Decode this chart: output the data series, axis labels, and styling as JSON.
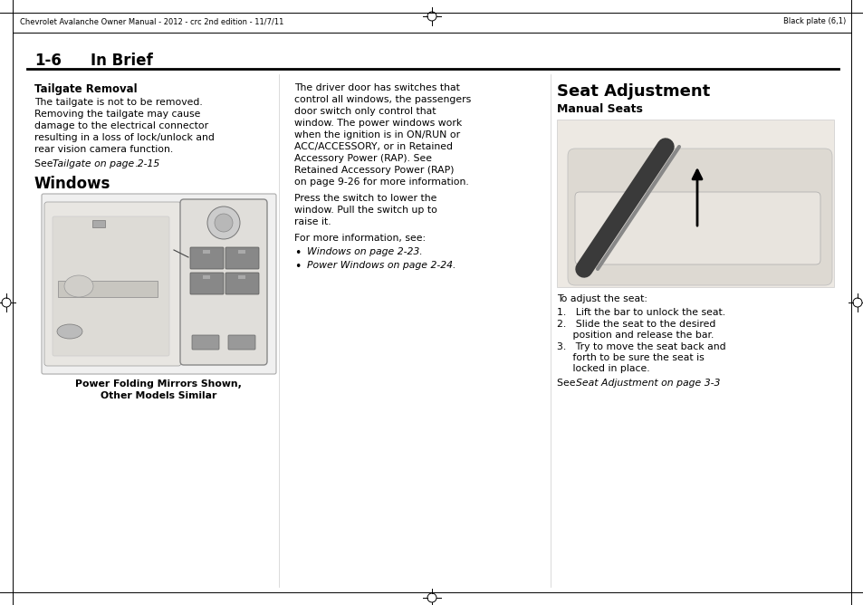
{
  "page_bg": "#ffffff",
  "header_text": "Chevrolet Avalanche Owner Manual - 2012 - crc 2nd edition - 11/7/11",
  "header_right": "Black plate (6,1)",
  "section_title_num": "1-6",
  "section_title_text": "In Brief",
  "col1_heading": "Tailgate Removal",
  "col1_body_lines": [
    "The tailgate is not to be removed.",
    "Removing the tailgate may cause",
    "damage to the electrical connector",
    "resulting in a loss of lock/unlock and",
    "rear vision camera function."
  ],
  "col1_see_plain": "See ",
  "col1_see_italic": "Tailgate on page 2-15",
  "col1_see_end": ".",
  "col1_subheading": "Windows",
  "col1_caption_line1": "Power Folding Mirrors Shown,",
  "col1_caption_line2": "Other Models Similar",
  "col2_body_lines": [
    "The driver door has switches that",
    "control all windows, the passengers",
    "door switch only control that",
    "window. The power windows work",
    "when the ignition is in ON/RUN or",
    "ACC/ACCESSORY, or in Retained",
    "Accessory Power (RAP). See",
    "Retained Accessory Power (RAP)",
    "on page 9-26 for more information."
  ],
  "col2_press_lines": [
    "Press the switch to lower the",
    "window. Pull the switch up to",
    "raise it."
  ],
  "col2_for_more": "For more information, see:",
  "col2_bullet1_italic": "Windows on page 2-23.",
  "col2_bullet2_italic": "Power Windows on page 2-24.",
  "col3_heading": "Seat Adjustment",
  "col3_subheading": "Manual Seats",
  "col3_adjust": "To adjust the seat:",
  "col3_step1": "1.   Lift the bar to unlock the seat.",
  "col3_step2a": "2.   Slide the seat to the desired",
  "col3_step2b": "     position and release the bar.",
  "col3_step3a": "3.   Try to move the seat back and",
  "col3_step3b": "     forth to be sure the seat is",
  "col3_step3c": "     locked in place.",
  "col3_see_plain": "See ",
  "col3_see_italic": "Seat Adjustment on page 3-3",
  "col3_see_end": ".",
  "outer_border_color": "#000000",
  "divider_line_color": "#888888",
  "text_color": "#000000"
}
